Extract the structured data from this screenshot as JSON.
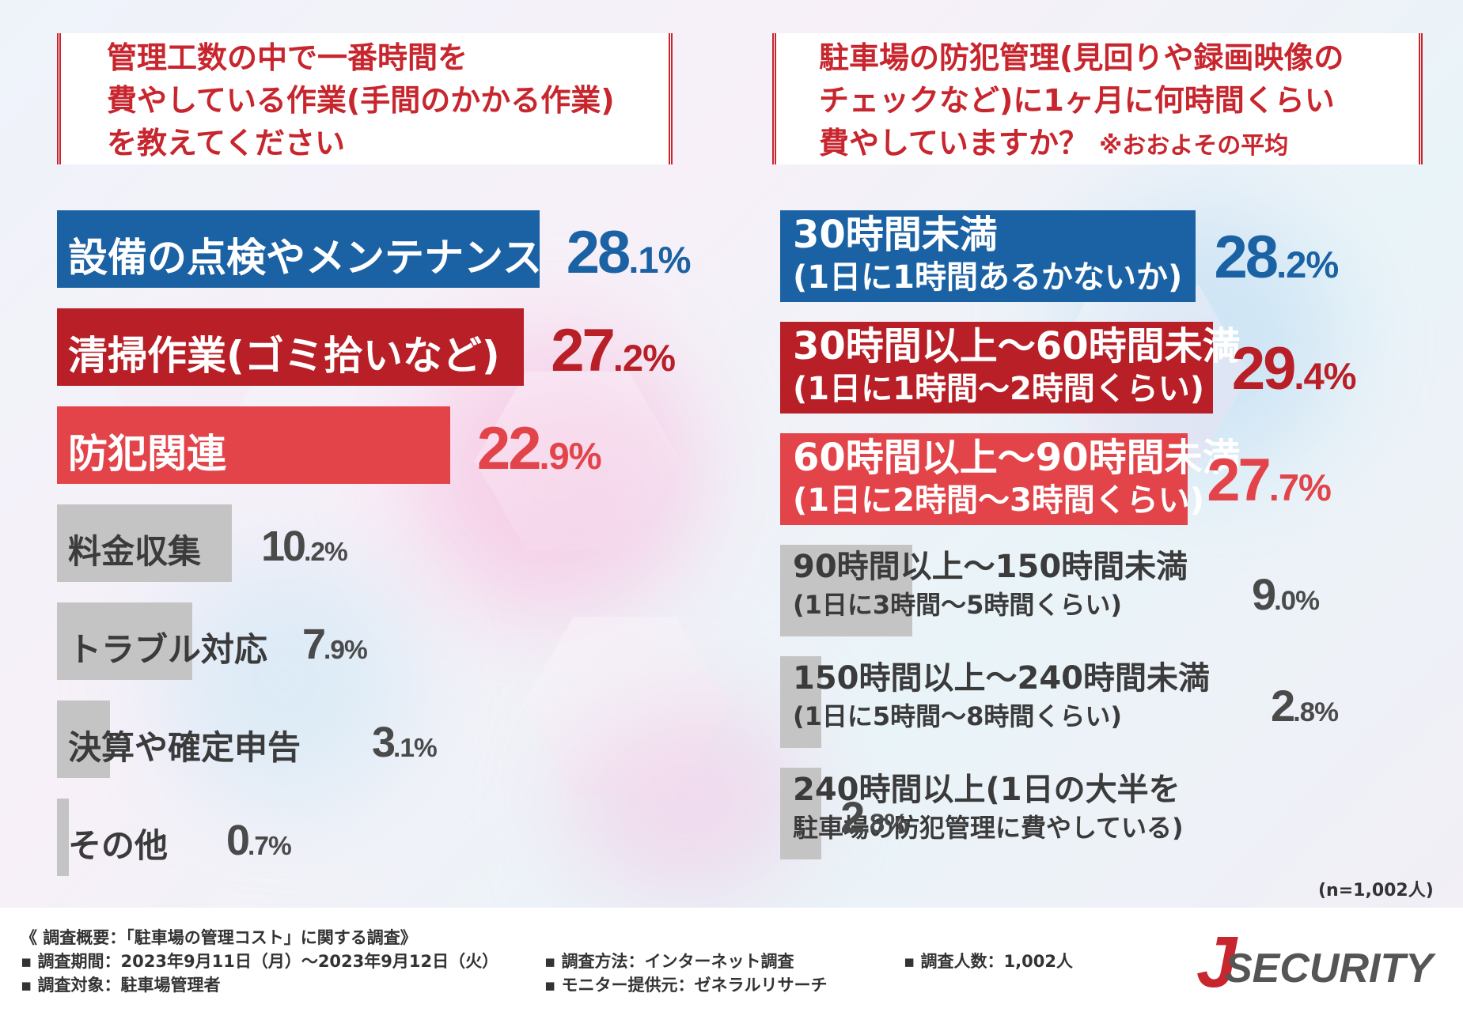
{
  "left_question": {
    "text": "管理工数の中で一番時間を\n費やしている作業(手間のかかる作業)\nを教えてください"
  },
  "right_question": {
    "text": "駐車場の防犯管理(見回りや録画映像の\nチェックなど)に1ヶ月に何時間くらい\n費やしていますか？",
    "note": "※おおよその平均"
  },
  "chart_data": [
    {
      "type": "bar",
      "orientation": "horizontal",
      "title": "管理工数の中で一番時間を費やしている作業(手間のかかる作業)を教えてください",
      "categories": [
        "設備の点検やメンテナンス",
        "清掃作業(ゴミ拾いなど)",
        "防犯関連",
        "料金収集",
        "トラブル対応",
        "決算や確定申告",
        "その他"
      ],
      "values": [
        28.1,
        27.2,
        22.9,
        10.2,
        7.9,
        3.1,
        0.7
      ],
      "value_labels": [
        [
          "28",
          ".1%"
        ],
        [
          "27",
          ".2%"
        ],
        [
          "22",
          ".9%"
        ],
        [
          "10",
          ".2%"
        ],
        [
          "7",
          ".9%"
        ],
        [
          "3",
          ".1%"
        ],
        [
          "0",
          ".7%"
        ]
      ],
      "unit": "%",
      "colors": [
        "#1b62a4",
        "#b81f26",
        "#e2444a",
        "#c4c4c4",
        "#c4c4c4",
        "#c4c4c4",
        "#c4c4c4"
      ]
    },
    {
      "type": "bar",
      "orientation": "horizontal",
      "title": "駐車場の防犯管理(見回りや録画映像のチェックなど)に1ヶ月に何時間くらい費やしていますか？ ※おおよその平均",
      "categories": [
        [
          "30時間未満",
          "(1日に1時間あるかないか)"
        ],
        [
          "30時間以上～60時間未満",
          "(1日に1時間～2時間くらい)"
        ],
        [
          "60時間以上～90時間未満",
          "(1日に2時間～3時間くらい)"
        ],
        [
          "90時間以上～150時間未満",
          "(1日に3時間～5時間くらい)"
        ],
        [
          "150時間以上～240時間未満",
          "(1日に5時間～8時間くらい)"
        ],
        [
          "240時間以上(1日の大半を",
          "駐車場の防犯管理に費やしている)"
        ]
      ],
      "values": [
        28.2,
        29.4,
        27.7,
        9.0,
        2.8,
        2.8
      ],
      "value_labels": [
        [
          "28",
          ".2%"
        ],
        [
          "29",
          ".4%"
        ],
        [
          "27",
          ".7%"
        ],
        [
          "9",
          ".0%"
        ],
        [
          "2",
          ".8%"
        ],
        [
          "2",
          ".8%"
        ]
      ],
      "unit": "%",
      "colors": [
        "#1b62a4",
        "#b81f26",
        "#e2444a",
        "#c4c4c4",
        "#c4c4c4",
        "#c4c4c4"
      ],
      "note": "(n=1,002人)"
    }
  ],
  "footer": {
    "survey_title": "《 調査概要：「駐車場の管理コスト」に関する調査》",
    "period": "▪ 調査期間：2023年9月11日（月）～2023年9月12日（火）",
    "target": "▪ 調査対象：駐車場管理者",
    "method": "▪ 調査方法：インターネット調査",
    "provider": "▪ モニター提供元：ゼネラルリサーチ",
    "count": "▪ 調査人数：1,002人"
  },
  "logo": {
    "initial": "J",
    "text": "SECURITY",
    "initial_color": "#c8262e",
    "text_color": "#555555"
  }
}
